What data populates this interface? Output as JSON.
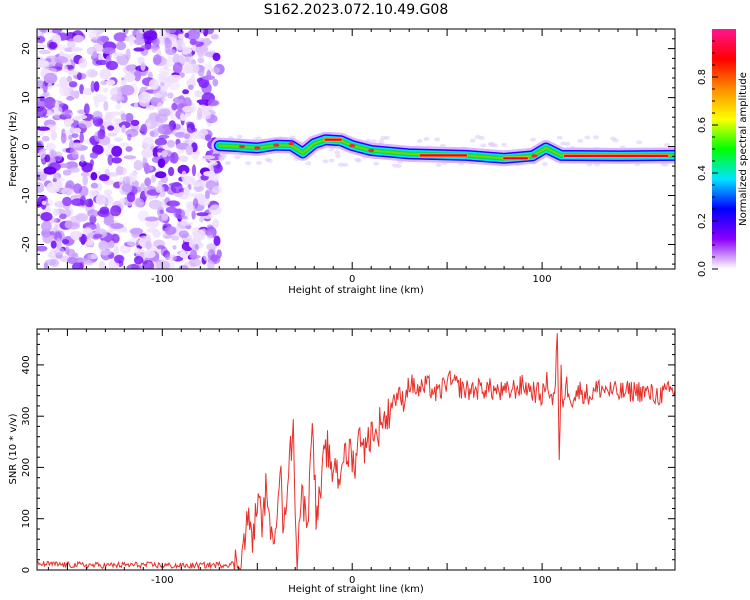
{
  "title": "S162.2023.072.10.49.G08",
  "chart_data": [
    {
      "type": "heatmap",
      "xlabel": "Height of straight line (km)",
      "ylabel": "Frequency (Hz)",
      "xlim": [
        -166,
        170
      ],
      "ylim": [
        -25,
        24
      ],
      "x_ticks": [
        -100,
        0,
        100
      ],
      "x_tick_labels": [
        "-100",
        "0",
        "100"
      ],
      "y_ticks": [
        -20,
        -10,
        0,
        10,
        20
      ],
      "y_tick_labels": [
        "-20",
        "-10",
        "0",
        "10",
        "20"
      ],
      "colorbar": {
        "label": "Normalized spectral amplitude",
        "range": [
          0,
          1
        ],
        "ticks": [
          0.0,
          0.2,
          0.4,
          0.6,
          0.8
        ],
        "tick_labels": [
          "0.0",
          "0.2",
          "0.4",
          "0.6",
          "0.8"
        ],
        "colors": [
          "#ffffff",
          "#8a00ff",
          "#0000ff",
          "#00e5ff",
          "#00ff00",
          "#ffff00",
          "#ff8c00",
          "#ff0000",
          "#ff1493"
        ]
      },
      "noise_region_x": [
        -166,
        -70
      ],
      "ridge": [
        {
          "x": -70,
          "y": 0.2
        },
        {
          "x": -60,
          "y": 0.0
        },
        {
          "x": -50,
          "y": -0.3
        },
        {
          "x": -40,
          "y": 0.3
        },
        {
          "x": -32,
          "y": 0.2
        },
        {
          "x": -26,
          "y": -1.3
        },
        {
          "x": -20,
          "y": 0.6
        },
        {
          "x": -14,
          "y": 1.4
        },
        {
          "x": -6,
          "y": 1.2
        },
        {
          "x": 0,
          "y": 0.2
        },
        {
          "x": 10,
          "y": -0.8
        },
        {
          "x": 30,
          "y": -1.5
        },
        {
          "x": 60,
          "y": -1.8
        },
        {
          "x": 80,
          "y": -2.4
        },
        {
          "x": 95,
          "y": -1.9
        },
        {
          "x": 102,
          "y": -0.3
        },
        {
          "x": 110,
          "y": -1.8
        },
        {
          "x": 140,
          "y": -1.9
        },
        {
          "x": 170,
          "y": -1.8
        }
      ],
      "ridge_peak_segments": [
        {
          "x": [
            -14,
            -6
          ],
          "y": 1.4
        },
        {
          "x": [
            36,
            60
          ],
          "y": -1.8
        },
        {
          "x": [
            80,
            92
          ],
          "y": -2.4
        },
        {
          "x": [
            112,
            166
          ],
          "y": -1.9
        }
      ]
    },
    {
      "type": "line",
      "xlabel": "Height of straight line (km)",
      "ylabel": "SNR (10 * v/v)",
      "xlim": [
        -166,
        170
      ],
      "ylim": [
        0,
        470
      ],
      "x_ticks": [
        -100,
        0,
        100
      ],
      "x_tick_labels": [
        "-100",
        "0",
        "100"
      ],
      "y_ticks": [
        0,
        100,
        200,
        300,
        400
      ],
      "y_tick_labels": [
        "0",
        "100",
        "200",
        "300",
        "400"
      ],
      "color": "#e8302a",
      "series": [
        {
          "x": [
            -166,
            -150,
            -130,
            -110,
            -90,
            -70,
            -62,
            -58,
            -55,
            -52,
            -50,
            -47,
            -45,
            -43,
            -40,
            -38,
            -36,
            -34,
            -31,
            -29,
            -27,
            -25,
            -23,
            -21,
            -19,
            -17,
            -15,
            -13,
            -11,
            -9,
            -7,
            -5,
            -3,
            -1,
            1,
            3,
            5,
            7,
            9,
            11,
            13,
            15,
            18,
            21,
            24,
            27,
            30,
            35,
            40,
            45,
            50,
            60,
            70,
            80,
            90,
            95,
            100,
            103,
            105,
            107,
            108,
            109,
            110,
            111,
            113,
            116,
            120,
            125,
            130,
            140,
            150,
            160,
            170
          ],
          "y": [
            12,
            10,
            9,
            10,
            8,
            10,
            12,
            30,
            100,
            60,
            140,
            90,
            180,
            40,
            110,
            210,
            60,
            190,
            270,
            10,
            150,
            120,
            110,
            320,
            100,
            140,
            210,
            240,
            180,
            220,
            170,
            230,
            210,
            240,
            200,
            250,
            270,
            230,
            260,
            280,
            250,
            300,
            290,
            330,
            340,
            330,
            365,
            350,
            360,
            340,
            370,
            350,
            355,
            345,
            360,
            350,
            340,
            370,
            330,
            360,
            470,
            200,
            380,
            330,
            360,
            335,
            350,
            340,
            355,
            345,
            350,
            340,
            350
          ]
        }
      ]
    }
  ]
}
